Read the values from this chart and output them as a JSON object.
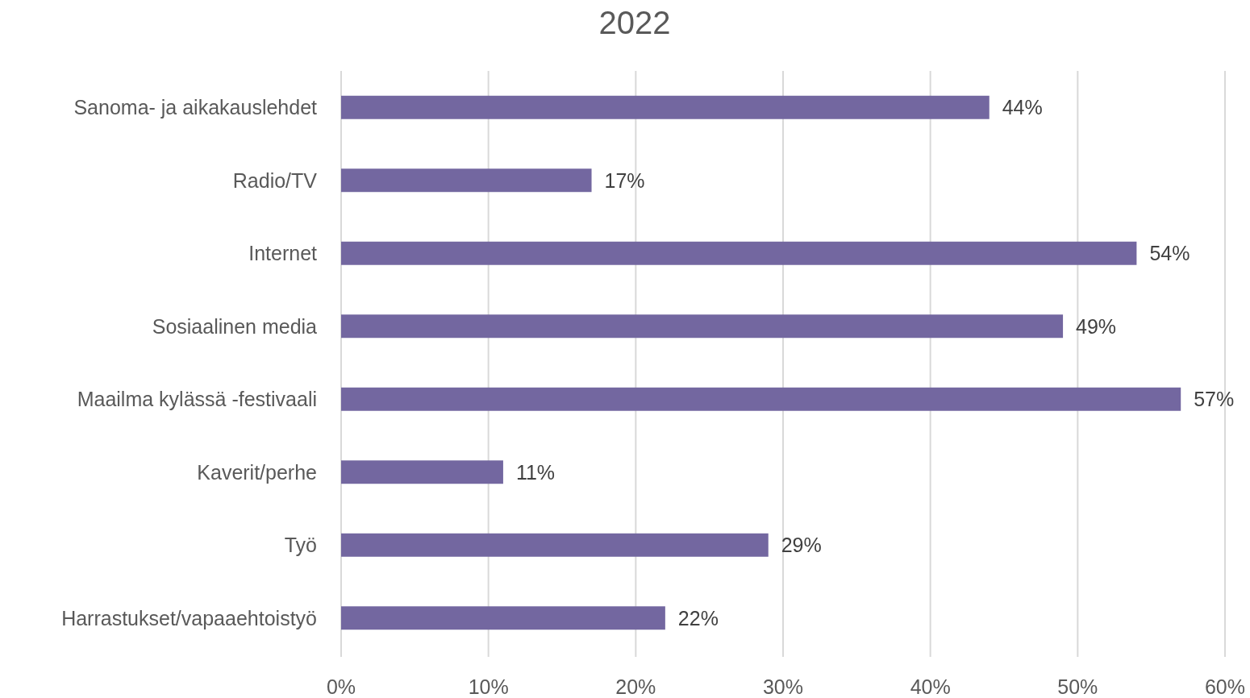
{
  "chart_data": {
    "type": "bar",
    "orientation": "horizontal",
    "title": "2022",
    "categories": [
      "Sanoma- ja aikakauslehdet",
      "Radio/TV",
      "Internet",
      "Sosiaalinen media",
      "Maailma kylässä -festivaali",
      "Kaverit/perhe",
      "Työ",
      "Harrastukset/vapaaehtoistyö"
    ],
    "values": [
      44,
      17,
      54,
      49,
      57,
      11,
      29,
      22
    ],
    "value_labels": [
      "44%",
      "17%",
      "54%",
      "49%",
      "57%",
      "11%",
      "29%",
      "22%"
    ],
    "color": "#7367a0",
    "xlim": [
      0,
      60
    ],
    "xticks": [
      {
        "value": 0,
        "label": "0%"
      },
      {
        "value": 10,
        "label": "10%"
      },
      {
        "value": 20,
        "label": "20%"
      },
      {
        "value": 30,
        "label": "30%"
      },
      {
        "value": 40,
        "label": "40%"
      },
      {
        "value": 50,
        "label": "50%"
      },
      {
        "value": 60,
        "label": "60%"
      }
    ],
    "grid": "x"
  }
}
